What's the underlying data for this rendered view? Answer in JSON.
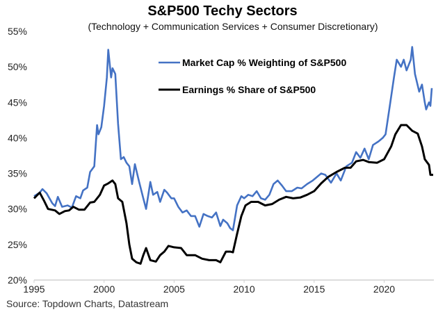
{
  "chart_data": {
    "type": "line",
    "title": "S&P500 Techy Sectors",
    "subtitle": "(Technology + Communication Services + Consumer Discretionary)",
    "source": "Source: Topdown Charts, Datastream",
    "xlabel": "",
    "ylabel": "",
    "xlim": [
      1995,
      2023.55
    ],
    "ylim": [
      20,
      55
    ],
    "x_ticks": [
      "1995",
      "2000",
      "2005",
      "2010",
      "2015",
      "2020"
    ],
    "y_ticks": [
      "20%",
      "25%",
      "30%",
      "35%",
      "40%",
      "45%",
      "50%",
      "55%"
    ],
    "grid": false,
    "legend_position": "top-center",
    "series": [
      {
        "name": "Market Cap % Weighting of S&P500",
        "color": "#4472C4",
        "x": [
          1995.0,
          1995.4,
          1995.6,
          1995.9,
          1996.3,
          1996.5,
          1996.7,
          1997.0,
          1997.4,
          1997.7,
          1998.0,
          1998.3,
          1998.5,
          1998.8,
          1999.0,
          1999.3,
          1999.5,
          1999.6,
          1999.8,
          2000.0,
          2000.2,
          2000.3,
          2000.5,
          2000.6,
          2000.8,
          2001.0,
          2001.2,
          2001.4,
          2001.6,
          2001.8,
          2002.0,
          2002.2,
          2002.5,
          2002.8,
          2003.0,
          2003.3,
          2003.5,
          2003.8,
          2004.0,
          2004.3,
          2004.5,
          2004.8,
          2005.0,
          2005.3,
          2005.6,
          2005.9,
          2006.2,
          2006.5,
          2006.8,
          2007.1,
          2007.4,
          2007.7,
          2008.0,
          2008.3,
          2008.5,
          2008.8,
          2009.0,
          2009.2,
          2009.5,
          2009.8,
          2010.0,
          2010.3,
          2010.6,
          2010.9,
          2011.2,
          2011.5,
          2011.8,
          2012.1,
          2012.4,
          2012.7,
          2013.0,
          2013.4,
          2013.8,
          2014.1,
          2014.5,
          2014.9,
          2015.2,
          2015.5,
          2015.8,
          2016.2,
          2016.6,
          2016.9,
          2017.3,
          2017.7,
          2018.0,
          2018.3,
          2018.6,
          2018.9,
          2019.2,
          2019.6,
          2019.9,
          2020.1,
          2020.4,
          2020.7,
          2020.9,
          2021.2,
          2021.4,
          2021.6,
          2021.9,
          2022.0,
          2022.2,
          2022.5,
          2022.7,
          2022.9,
          2023.0,
          2023.2,
          2023.3,
          2023.4
        ],
        "values": [
          31.8,
          32.3,
          32.8,
          32.2,
          30.8,
          30.4,
          31.7,
          30.3,
          30.5,
          30.2,
          31.8,
          31.5,
          32.6,
          33.0,
          35.2,
          36.0,
          41.8,
          40.5,
          41.5,
          44.5,
          48.5,
          52.4,
          48.5,
          49.8,
          49.0,
          42.0,
          37.0,
          37.3,
          36.5,
          36.0,
          33.5,
          36.3,
          33.8,
          31.5,
          30.0,
          33.8,
          32.0,
          32.4,
          31.0,
          32.7,
          32.3,
          31.5,
          31.5,
          30.3,
          29.5,
          29.8,
          29.0,
          29.0,
          27.5,
          29.3,
          29.0,
          28.8,
          29.5,
          27.6,
          28.5,
          28.0,
          27.3,
          27.0,
          30.5,
          31.8,
          31.5,
          32.0,
          31.8,
          32.5,
          31.5,
          31.3,
          32.0,
          33.5,
          34.0,
          33.3,
          32.5,
          32.5,
          33.0,
          32.9,
          33.5,
          34.0,
          34.5,
          35.0,
          34.8,
          33.7,
          35.0,
          34.0,
          36.0,
          36.5,
          38.0,
          37.2,
          38.5,
          37.0,
          39.0,
          39.5,
          40.0,
          40.5,
          44.5,
          48.5,
          51.0,
          50.0,
          51.0,
          49.5,
          51.0,
          52.8,
          49.0,
          46.5,
          47.5,
          45.0,
          44.0,
          45.0,
          44.5,
          47.0
        ]
      },
      {
        "name": "Earnings % Share of S&P500",
        "color": "#000000",
        "x": [
          1995.0,
          1995.4,
          1995.7,
          1996.0,
          1996.5,
          1996.8,
          1997.2,
          1997.5,
          1997.8,
          1998.2,
          1998.6,
          1999.0,
          1999.3,
          1999.7,
          2000.0,
          2000.3,
          2000.6,
          2000.8,
          2001.0,
          2001.3,
          2001.6,
          2001.8,
          2002.0,
          2002.3,
          2002.6,
          2002.8,
          2003.0,
          2003.3,
          2003.7,
          2004.0,
          2004.3,
          2004.6,
          2005.0,
          2005.5,
          2005.9,
          2006.5,
          2007.0,
          2007.5,
          2008.0,
          2008.3,
          2008.7,
          2009.0,
          2009.2,
          2009.5,
          2009.8,
          2010.1,
          2010.5,
          2011.0,
          2011.5,
          2012.0,
          2012.5,
          2013.0,
          2013.5,
          2014.0,
          2014.5,
          2015.0,
          2015.5,
          2016.0,
          2016.6,
          2017.2,
          2017.6,
          2018.0,
          2018.5,
          2018.9,
          2019.5,
          2020.0,
          2020.5,
          2020.8,
          2021.2,
          2021.6,
          2022.0,
          2022.4,
          2022.7,
          2022.9,
          2023.2,
          2023.3,
          2023.5
        ],
        "values": [
          31.5,
          32.3,
          31.2,
          30.0,
          29.8,
          29.3,
          29.7,
          29.8,
          30.3,
          29.9,
          29.9,
          30.9,
          31.0,
          32.0,
          33.3,
          33.6,
          34.0,
          33.5,
          31.5,
          31.0,
          28.0,
          25.0,
          23.0,
          22.5,
          22.3,
          23.5,
          24.5,
          22.8,
          22.6,
          23.5,
          24.0,
          24.8,
          24.6,
          24.5,
          23.5,
          23.5,
          23.0,
          22.8,
          22.8,
          22.5,
          24.0,
          24.0,
          23.9,
          26.5,
          29.0,
          30.5,
          31.0,
          31.0,
          30.5,
          30.7,
          31.3,
          31.7,
          31.5,
          31.6,
          32.0,
          32.5,
          33.6,
          34.5,
          35.2,
          35.8,
          35.8,
          36.7,
          36.9,
          36.6,
          36.5,
          37.0,
          38.8,
          40.5,
          41.8,
          41.8,
          41.0,
          40.6,
          38.8,
          37.0,
          36.2,
          34.8,
          34.8
        ]
      }
    ]
  }
}
